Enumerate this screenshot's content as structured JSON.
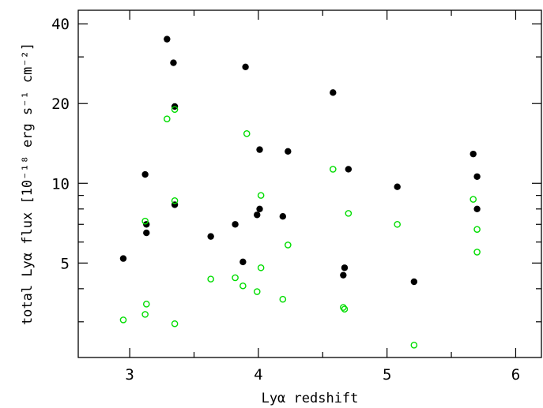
{
  "chart_data": {
    "type": "scatter",
    "xlabel": "Lyα redshift",
    "ylabel": "total Lyα flux [10⁻¹⁸ erg s⁻¹ cm⁻²]",
    "xlim": [
      2.6,
      6.2
    ],
    "ylim": [
      2.2,
      45
    ],
    "yscale": "log",
    "x_ticks": [
      3,
      4,
      5,
      6
    ],
    "x_tick_labels": [
      "3",
      "4",
      "5",
      "6"
    ],
    "y_ticks": [
      5,
      10,
      20,
      40
    ],
    "y_tick_labels": [
      "5",
      "10",
      "20",
      "40"
    ],
    "grid": false,
    "legend": "none",
    "colors": {
      "filled": "#000000",
      "open": "#00dd00",
      "axes": "#000000"
    },
    "series": [
      {
        "marker": "filled",
        "points": [
          [
            2.95,
            5.2
          ],
          [
            3.12,
            10.8
          ],
          [
            3.13,
            6.5
          ],
          [
            3.13,
            7.0
          ],
          [
            3.29,
            35.0
          ],
          [
            3.34,
            28.5
          ],
          [
            3.35,
            19.5
          ],
          [
            3.35,
            8.3
          ],
          [
            3.63,
            6.3
          ],
          [
            3.82,
            7.0
          ],
          [
            3.88,
            5.05
          ],
          [
            3.9,
            27.5
          ],
          [
            3.99,
            7.6
          ],
          [
            4.01,
            13.4
          ],
          [
            4.01,
            8.0
          ],
          [
            4.19,
            7.5
          ],
          [
            4.23,
            13.2
          ],
          [
            4.58,
            22.0
          ],
          [
            4.66,
            4.5
          ],
          [
            4.67,
            4.8
          ],
          [
            4.7,
            11.3
          ],
          [
            5.08,
            9.7
          ],
          [
            5.21,
            4.25
          ],
          [
            5.67,
            12.9
          ],
          [
            5.7,
            10.6
          ],
          [
            5.7,
            8.0
          ]
        ]
      },
      {
        "marker": "open",
        "points": [
          [
            2.95,
            3.05
          ],
          [
            3.12,
            3.2
          ],
          [
            3.13,
            3.5
          ],
          [
            3.12,
            7.2
          ],
          [
            3.29,
            17.5
          ],
          [
            3.35,
            19.0
          ],
          [
            3.35,
            8.6
          ],
          [
            3.35,
            2.95
          ],
          [
            3.63,
            4.35
          ],
          [
            3.82,
            4.4
          ],
          [
            3.88,
            4.1
          ],
          [
            3.91,
            15.4
          ],
          [
            3.99,
            3.9
          ],
          [
            4.02,
            4.8
          ],
          [
            4.02,
            9.0
          ],
          [
            4.19,
            3.65
          ],
          [
            4.23,
            5.85
          ],
          [
            4.58,
            11.3
          ],
          [
            4.66,
            3.4
          ],
          [
            4.67,
            3.35
          ],
          [
            4.7,
            7.7
          ],
          [
            5.08,
            7.0
          ],
          [
            5.21,
            2.45
          ],
          [
            5.67,
            8.7
          ],
          [
            5.7,
            6.7
          ],
          [
            5.7,
            5.5
          ]
        ]
      }
    ]
  }
}
